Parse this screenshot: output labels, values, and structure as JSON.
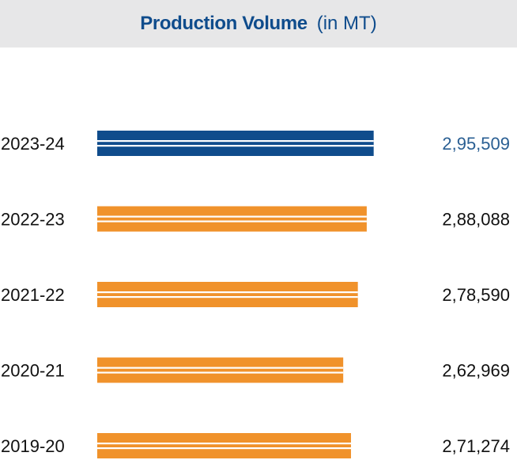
{
  "header": {
    "title": "Production Volume",
    "unit": "(in MT)"
  },
  "colors": {
    "highlight_bar": "#0f4c8c",
    "bar": "#f0922b",
    "highlight_value": "#2a5f93",
    "text": "#111111",
    "header_bg": "#e7e7e8"
  },
  "chart_data": {
    "type": "bar",
    "orientation": "horizontal",
    "title": "Production Volume (in MT)",
    "categories": [
      "2023-24",
      "2022-23",
      "2021-22",
      "2020-21",
      "2019-20"
    ],
    "values": [
      295509,
      288088,
      278590,
      262969,
      271274
    ],
    "value_labels": [
      "2,95,509",
      "2,88,088",
      "2,78,590",
      "2,62,969",
      "2,71,274"
    ],
    "highlight_index": 0,
    "xlim": [
      0,
      300000
    ],
    "grid": false,
    "legend": "none"
  }
}
